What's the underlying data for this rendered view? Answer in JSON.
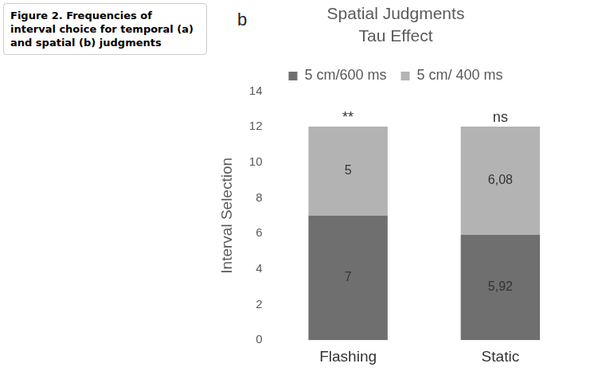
{
  "figure_caption": "Figure 2. Frequencies of interval choice for temporal (a) and spatial (b) judgments",
  "chart_data": {
    "type": "bar",
    "panel_label": "b",
    "title": "Spatial Judgments",
    "subtitle": "Tau Effect",
    "y_label": "Interval Selection",
    "categories": [
      "Flashing",
      "Static"
    ],
    "series": [
      {
        "name": "5 cm/600 ms",
        "color": "#6f6f6f",
        "values": [
          7,
          5.92
        ],
        "value_labels": [
          "7",
          "5,92"
        ]
      },
      {
        "name": "5 cm/ 400 ms",
        "color": "#b3b3b3",
        "values": [
          5,
          6.08
        ],
        "value_labels": [
          "5",
          "6,08"
        ]
      }
    ],
    "stacked": true,
    "data_labels": true,
    "annotations": [
      {
        "category": "Flashing",
        "text": "**"
      },
      {
        "category": "Static",
        "text": "ns"
      }
    ],
    "ylim": [
      0,
      14
    ],
    "yticks": [
      0,
      2,
      4,
      6,
      8,
      10,
      12,
      14
    ],
    "grid": false,
    "legend": "top"
  }
}
